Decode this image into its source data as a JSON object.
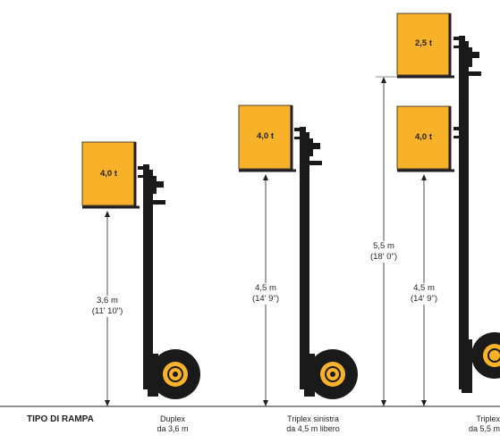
{
  "header": {
    "label": "TIPO DI RAMPA"
  },
  "colors": {
    "load_fill": "#f7b229",
    "mast": "#1a1a1a",
    "tyre_rim": "#f7b229",
    "line": "#231f20"
  },
  "configs": [
    {
      "load": "4,0 t",
      "height": "3,6 m",
      "height_ft": "(11' 10\")",
      "caption_line1": "Duplex",
      "caption_line2": "da 3,6 m"
    },
    {
      "load": "4,0 t",
      "height": "4,5 m",
      "height_ft": "(14' 9\")",
      "caption_line1": "Triplex sinistra",
      "caption_line2": "da 4,5 m libero"
    },
    {
      "load_top": "2,5 t",
      "load_bottom": "4,0 t",
      "height_outer": "5,5 m",
      "height_outer_ft": "(18' 0\")",
      "height_inner": "4,5 m",
      "height_inner_ft": "(14' 9\")",
      "caption_line1": "Triplex",
      "caption_line2": "da 5,5 m"
    }
  ]
}
